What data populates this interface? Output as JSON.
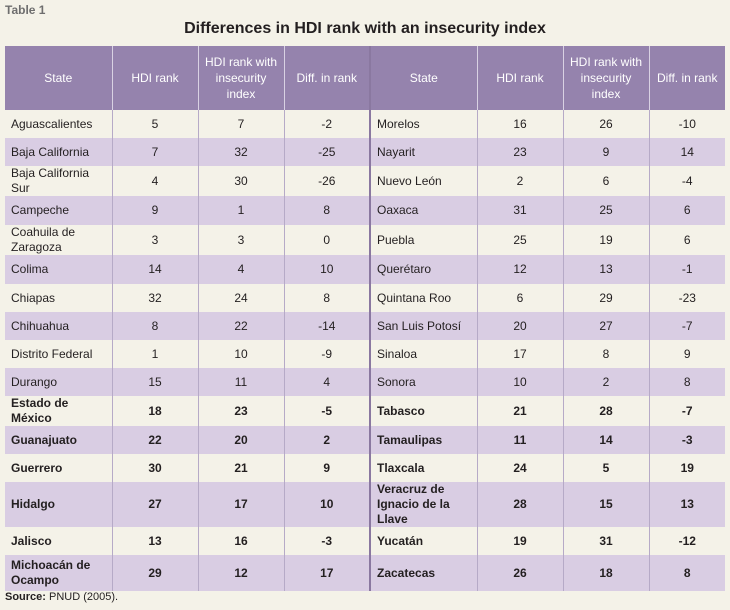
{
  "table_label": "Table 1",
  "title": "Differences in HDI rank with an insecurity index",
  "headers": [
    "State",
    "HDI rank",
    "HDI rank with insecurity index",
    "Diff. in rank",
    "State",
    "HDI rank",
    "HDI rank with insecurity index",
    "Diff. in rank"
  ],
  "rows": [
    {
      "left": [
        "Aguascalientes",
        "5",
        "7",
        "-2"
      ],
      "right": [
        "Morelos",
        "16",
        "26",
        "-10"
      ]
    },
    {
      "left": [
        "Baja California",
        "7",
        "32",
        "-25"
      ],
      "right": [
        "Nayarit",
        "23",
        "9",
        "14"
      ]
    },
    {
      "left": [
        "Baja California Sur",
        "4",
        "30",
        "-26"
      ],
      "right": [
        "Nuevo León",
        "2",
        "6",
        "-4"
      ]
    },
    {
      "left": [
        "Campeche",
        "9",
        "1",
        "8"
      ],
      "right": [
        "Oaxaca",
        "31",
        "25",
        "6"
      ]
    },
    {
      "left": [
        "Coahuila de Zaragoza",
        "3",
        "3",
        "0"
      ],
      "right": [
        "Puebla",
        "25",
        "19",
        "6"
      ]
    },
    {
      "left": [
        "Colima",
        "14",
        "4",
        "10"
      ],
      "right": [
        "Querétaro",
        "12",
        "13",
        "-1"
      ]
    },
    {
      "left": [
        "Chiapas",
        "32",
        "24",
        "8"
      ],
      "right": [
        "Quintana Roo",
        "6",
        "29",
        "-23"
      ]
    },
    {
      "left": [
        "Chihuahua",
        "8",
        "22",
        "-14"
      ],
      "right": [
        "San Luis Potosí",
        "20",
        "27",
        "-7"
      ]
    },
    {
      "left": [
        "Distrito Federal",
        "1",
        "10",
        "-9"
      ],
      "right": [
        "Sinaloa",
        "17",
        "8",
        "9"
      ]
    },
    {
      "left": [
        "Durango",
        "15",
        "11",
        "4"
      ],
      "right": [
        "Sonora",
        "10",
        "2",
        "8"
      ]
    },
    {
      "left": [
        "Estado de México",
        "18",
        "23",
        "-5"
      ],
      "right": [
        "Tabasco",
        "21",
        "28",
        "-7"
      ]
    },
    {
      "left": [
        "Guanajuato",
        "22",
        "20",
        "2"
      ],
      "right": [
        "Tamaulipas",
        "11",
        "14",
        "-3"
      ]
    },
    {
      "left": [
        "Guerrero",
        "30",
        "21",
        "9"
      ],
      "right": [
        "Tlaxcala",
        "24",
        "5",
        "19"
      ]
    },
    {
      "left": [
        "Hidalgo",
        "27",
        "17",
        "10"
      ],
      "right": [
        "Veracruz de Ignacio de la Llave",
        "28",
        "15",
        "13"
      ]
    },
    {
      "left": [
        "Jalisco",
        "13",
        "16",
        "-3"
      ],
      "right": [
        "Yucatán",
        "19",
        "31",
        "-12"
      ]
    },
    {
      "left": [
        "Michoacán de Ocampo",
        "29",
        "12",
        "17"
      ],
      "right": [
        "Zacatecas",
        "26",
        "18",
        "8"
      ]
    }
  ],
  "source_label": "Source:",
  "source_text": " PNUD (2005)."
}
